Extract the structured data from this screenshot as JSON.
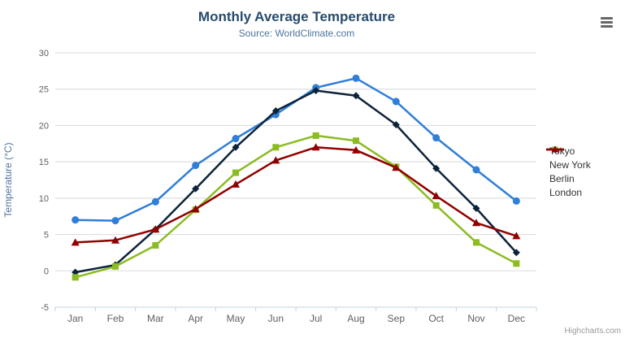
{
  "credit": "Highcharts.com",
  "chart_data": {
    "type": "line",
    "title": "Monthly Average Temperature",
    "subtitle": "Source: WorldClimate.com",
    "categories": [
      "Jan",
      "Feb",
      "Mar",
      "Apr",
      "May",
      "Jun",
      "Jul",
      "Aug",
      "Sep",
      "Oct",
      "Nov",
      "Dec"
    ],
    "series": [
      {
        "name": "Tokyo",
        "color": "#2f7ed8",
        "marker": "circle",
        "values": [
          7.0,
          6.9,
          9.5,
          14.5,
          18.2,
          21.5,
          25.2,
          26.5,
          23.3,
          18.3,
          13.9,
          9.6
        ]
      },
      {
        "name": "New York",
        "color": "#0d233a",
        "marker": "diamond",
        "values": [
          -0.2,
          0.8,
          5.7,
          11.3,
          17.0,
          22.0,
          24.8,
          24.1,
          20.1,
          14.1,
          8.6,
          2.5
        ]
      },
      {
        "name": "Berlin",
        "color": "#8bbc21",
        "marker": "square",
        "values": [
          -0.9,
          0.6,
          3.5,
          8.4,
          13.5,
          17.0,
          18.6,
          17.9,
          14.3,
          9.0,
          3.9,
          1.0
        ]
      },
      {
        "name": "London",
        "color": "#910000",
        "marker": "triangle",
        "values": [
          3.9,
          4.2,
          5.7,
          8.5,
          11.9,
          15.2,
          17.0,
          16.6,
          14.2,
          10.3,
          6.6,
          4.8
        ]
      }
    ],
    "xlabel": "",
    "ylabel": "Temperature (°C)",
    "ylim": [
      -5,
      30
    ],
    "ytick_step": 5,
    "grid": true,
    "legend_position": "right",
    "colors": {
      "title": "#274b6d",
      "subtitle": "#4d759e",
      "axis_labels": "#606060",
      "gridline": "#d8d8d8",
      "axis_line": "#c0d0e0",
      "legend_text": "#333333",
      "credit": "#999999",
      "menu_icon": "#666666"
    }
  }
}
